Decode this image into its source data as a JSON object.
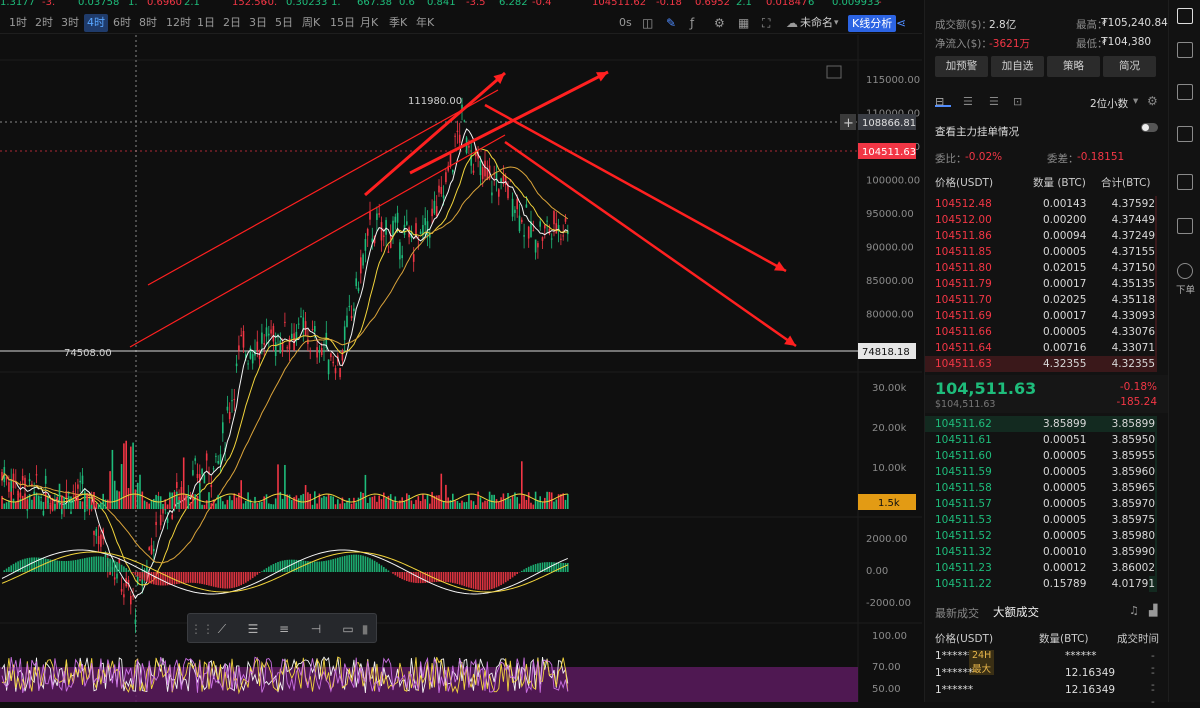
{
  "ticker": [
    {
      "text": "1.3177",
      "cls": "green"
    },
    {
      "text": "-3.",
      "cls": "red"
    },
    {
      "text": "0.03758",
      "cls": "green"
    },
    {
      "text": "1.",
      "cls": "green"
    },
    {
      "text": "0.6960",
      "cls": "red"
    },
    {
      "text": "2.1",
      "cls": "green"
    },
    {
      "text": "152.56",
      "cls": "red"
    },
    {
      "text": "-0.",
      "cls": "red"
    },
    {
      "text": "0.30233",
      "cls": "green"
    },
    {
      "text": "1.",
      "cls": "green"
    },
    {
      "text": "667.38",
      "cls": "green"
    },
    {
      "text": "0.6",
      "cls": "green"
    },
    {
      "text": "0.841",
      "cls": "green"
    },
    {
      "text": "-3.5",
      "cls": "red"
    },
    {
      "text": "6.282",
      "cls": "green"
    },
    {
      "text": "-0.4",
      "cls": "red"
    },
    {
      "text": "104511.62",
      "cls": "red"
    },
    {
      "text": "-0.18",
      "cls": "red"
    },
    {
      "text": "0.6952",
      "cls": "red"
    },
    {
      "text": "2.1",
      "cls": "green"
    },
    {
      "text": "0.01847",
      "cls": "red"
    },
    {
      "text": "6",
      "cls": "green"
    },
    {
      "text": "0.009933",
      "cls": "green"
    },
    {
      "text": "-",
      "cls": "red"
    }
  ],
  "timeframes": [
    "1时",
    "2时",
    "3时",
    "4时",
    "6时",
    "8时",
    "12时",
    "1日",
    "2日",
    "3日",
    "5日",
    "周K",
    "15日",
    "月K",
    "季K",
    "年K"
  ],
  "active_timeframe": "4时",
  "toolbar": {
    "seconds_label": "0s",
    "layout_name": "未命名",
    "kline_button": "K线分析"
  },
  "price_axis": [
    "115000.00",
    "110000.00",
    "105000.00",
    "100000.00",
    "95000.00",
    "90000.00",
    "85000.00",
    "80000.00"
  ],
  "price_tags": {
    "crosshair": "108866.81",
    "last": "104511.63",
    "low_line": "74818.18",
    "high_label": "111980.00",
    "low_label": "74508.00"
  },
  "volume_axis": [
    "30.00k",
    "20.00k",
    "10.00k"
  ],
  "volume_tag": "1.5k",
  "macd_axis": [
    "2000.00",
    "0.00",
    "-2000.00"
  ],
  "rsi_axis": [
    "100.00",
    "70.00",
    "50.00"
  ],
  "drawing_tools": [
    "drag-handle",
    "trend-line",
    "parallel-channel",
    "horizontal-lines",
    "ray",
    "rectangle"
  ],
  "stats": {
    "turnover_label": "成交额($)：",
    "turnover": "2.8亿",
    "netflow_label": "净流入($)：",
    "netflow": "-3621万",
    "high_label": "最高：",
    "high": "₮105,240.84",
    "low_label": "最低：",
    "low": "₮104,380"
  },
  "action_buttons": [
    "加预警",
    "加自选",
    "策略",
    "简况"
  ],
  "ob_header": {
    "precision": "2位小数",
    "main_force": "查看主力挂单情况",
    "ratio_label": "委比：",
    "ratio": "-0.02%",
    "diff_label": "委差：",
    "diff": "-0.18151",
    "col_price": "价格(USDT)",
    "col_qty": "数量 (BTC)",
    "col_total": "合计(BTC)"
  },
  "asks": [
    {
      "p": "104512.48",
      "q": "0.00143",
      "t": "4.37592"
    },
    {
      "p": "104512.00",
      "q": "0.00200",
      "t": "4.37449"
    },
    {
      "p": "104511.86",
      "q": "0.00094",
      "t": "4.37249"
    },
    {
      "p": "104511.85",
      "q": "0.00005",
      "t": "4.37155"
    },
    {
      "p": "104511.80",
      "q": "0.02015",
      "t": "4.37150"
    },
    {
      "p": "104511.79",
      "q": "0.00017",
      "t": "4.35135"
    },
    {
      "p": "104511.70",
      "q": "0.02025",
      "t": "4.35118"
    },
    {
      "p": "104511.69",
      "q": "0.00017",
      "t": "4.33093"
    },
    {
      "p": "104511.66",
      "q": "0.00005",
      "t": "4.33076"
    },
    {
      "p": "104511.64",
      "q": "0.00716",
      "t": "4.33071"
    },
    {
      "p": "104511.63",
      "q": "4.32355",
      "t": "4.32355"
    }
  ],
  "mid": {
    "price": "104,511.63",
    "usd": "$104,511.63",
    "pct": "-0.18%",
    "chg": "-185.24"
  },
  "bids": [
    {
      "p": "104511.62",
      "q": "3.85899",
      "t": "3.85899"
    },
    {
      "p": "104511.61",
      "q": "0.00051",
      "t": "3.85950"
    },
    {
      "p": "104511.60",
      "q": "0.00005",
      "t": "3.85955"
    },
    {
      "p": "104511.59",
      "q": "0.00005",
      "t": "3.85960"
    },
    {
      "p": "104511.58",
      "q": "0.00005",
      "t": "3.85965"
    },
    {
      "p": "104511.57",
      "q": "0.00005",
      "t": "3.85970"
    },
    {
      "p": "104511.53",
      "q": "0.00005",
      "t": "3.85975"
    },
    {
      "p": "104511.52",
      "q": "0.00005",
      "t": "3.85980"
    },
    {
      "p": "104511.32",
      "q": "0.00010",
      "t": "3.85990"
    },
    {
      "p": "104511.23",
      "q": "0.00012",
      "t": "3.86002"
    },
    {
      "p": "104511.22",
      "q": "0.15789",
      "t": "4.01791"
    }
  ],
  "trades": {
    "tab_latest": "最新成交",
    "tab_large": "大额成交",
    "col_price": "价格(USDT)",
    "col_qty": "数量(BTC)",
    "col_time": "成交时间",
    "rows": [
      {
        "p": "1******",
        "badge": "24H最大",
        "q": "******",
        "t": "--"
      },
      {
        "p": "1******",
        "badge": "",
        "q": "12.16349",
        "t": "--"
      },
      {
        "p": "1******",
        "badge": "",
        "q": "12.16349",
        "t": "--"
      }
    ]
  },
  "side_rail": {
    "order_label": "下单"
  },
  "colors": {
    "up": "#1ebc7b",
    "down": "#f23645",
    "accent": "#2c64e3",
    "bg": "#0f0f0f"
  }
}
